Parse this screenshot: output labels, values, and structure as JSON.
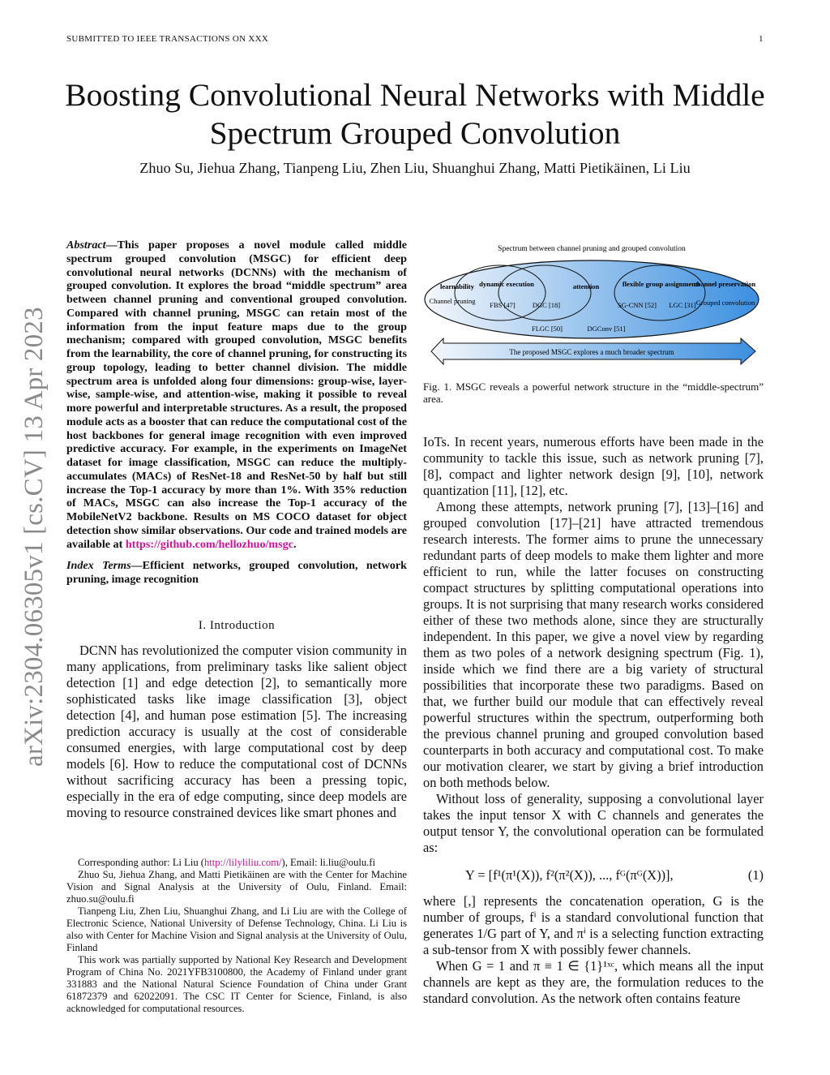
{
  "header": {
    "left": "SUBMITTED TO IEEE TRANSACTIONS ON XXX",
    "page": "1"
  },
  "title": "Boosting Convolutional Neural Networks with Middle Spectrum Grouped Convolution",
  "authors": "Zhuo Su, Jiehua Zhang, Tianpeng Liu, Zhen Liu, Shuanghui Zhang, Matti Pietikäinen, Li Liu",
  "watermark": "arXiv:2304.06305v1  [cs.CV]  13 Apr 2023",
  "abstract": {
    "label": "Abstract",
    "text": "—This paper proposes a novel module called middle spectrum grouped convolution (MSGC) for efficient deep convolutional neural networks (DCNNs) with the mechanism of grouped convolution. It explores the broad “middle spectrum” area between channel pruning and conventional grouped convolution. Compared with channel pruning, MSGC can retain most of the information from the input feature maps due to the group mechanism; compared with grouped convolution, MSGC benefits from the learnability, the core of channel pruning, for constructing its group topology, leading to better channel division. The middle spectrum area is unfolded along four dimensions: group-wise, layer-wise, sample-wise, and attention-wise, making it possible to reveal more powerful and interpretable structures. As a result, the proposed module acts as a booster that can reduce the computational cost of the host backbones for general image recognition with even improved predictive accuracy. For example, in the experiments on ImageNet dataset for image classification, MSGC can reduce the multiply-accumulates (MACs) of ResNet-18 and ResNet-50 by half but still increase the Top-1 accuracy by more than 1%. With 35% reduction of MACs, MSGC can also increase the Top-1 accuracy of the MobileNetV2 backbone. Results on MS COCO dataset for object detection show similar observations. Our code and trained models are available at ",
    "link": "https://github.com/hellozhuo/msgc",
    "end": "."
  },
  "index_terms": {
    "label": "Index Terms",
    "text": "—Efficient networks, grouped convolution, network pruning, image recognition"
  },
  "section1": "I. Introduction",
  "left_paragraph": "DCNN has revolutionized the computer vision community in many applications, from preliminary tasks like salient object detection [1] and edge detection [2], to semantically more sophisticated tasks like image classification [3], object detection [4], and human pose estimation [5]. The increasing prediction accuracy is usually at the cost of considerable consumed energies, with large computational cost by deep models [6]. How to reduce the computational cost of DCNNs without sacrificing accuracy has been a pressing topic, especially in the era of edge computing, since deep models are moving to resource constrained devices like smart phones and",
  "footnotes": [
    {
      "pre": "Corresponding author: Li Liu (",
      "link": "http://lilyliliu.com/",
      "post": "), Email: li.liu@oulu.fi"
    },
    {
      "pre": "Zhuo Su, Jiehua Zhang, and Matti Pietikäinen are with the Center for Machine Vision and Signal Analysis at the University of Oulu, Finland. Email: zhuo.su@oulu.fi"
    },
    {
      "pre": "Tianpeng Liu, Zhen Liu, Shuanghui Zhang, and Li Liu are with the College of Electronic Science, National University of Defense Technology, China. Li Liu is also with Center for Machine Vision and Signal analysis at the University of Oulu, Finland"
    },
    {
      "pre": "This work was partially supported by National Key Research and Development Program of China No. 2021YFB3100800, the Academy of Finland under grant 331883 and the National Natural Science Foundation of China under Grant 61872379 and 62022091. The CSC IT Center for Science, Finland, is also acknowledged for computational resources."
    }
  ],
  "figure": {
    "top_label": "Spectrum between channel pruning and grouped convolution",
    "learnability": "learnability",
    "channel_pruning": "Channel pruning",
    "dynamic": "dynamic execution",
    "fbs": "FBS [47]",
    "dgc": "DGC [18]",
    "attention": "attention",
    "flexible": "flexible group assignments",
    "sgcnn": "SG-CNN [52]",
    "lgc": "LGC [31]",
    "preservation": "channel preservation",
    "grouped": "Grouped convolution",
    "flgc": "FLGC [50]",
    "dgconv": "DGConv [51]",
    "arrow": "The proposed MSGC explores a much broader spectrum",
    "caption": "Fig. 1.  MSGC reveals a powerful network structure in the “middle-spectrum” area.",
    "colors": {
      "light": "#f2f6fb",
      "dark": "#3b8fe0"
    }
  },
  "right_paragraphs": [
    "IoTs. In recent years, numerous efforts have been made in the community to tackle this issue, such as network pruning [7], [8], compact and lighter network design [9], [10], network quantization [11], [12], etc.",
    "Among these attempts, network pruning [7], [13]–[16] and grouped convolution [17]–[21] have attracted tremendous research interests. The former aims to prune the unnecessary redundant parts of deep models to make them lighter and more efficient to run, while the latter focuses on constructing compact structures by splitting computational operations into groups. It is not surprising that many research works considered either of these two methods alone, since they are structurally independent. In this paper, we give a novel view by regarding them as two poles of a network designing spectrum (Fig. 1), inside which we find there are a big variety of structural possibilities that incorporate these two paradigms. Based on that, we further build our module that can effectively reveal powerful structures within the spectrum, outperforming both the previous channel pruning and grouped convolution based counterparts in both accuracy and computational cost. To make our motivation clearer, we start by giving a brief introduction on both methods below.",
    "Without loss of generality, supposing a convolutional layer takes the input tensor X with C channels and generates the output tensor Y, the convolutional operation can be formulated as:"
  ],
  "equation": {
    "text": "Y = [f¹(π¹(X)), f²(π²(X)), ..., fᴳ(πᴳ(X))],",
    "number": "(1)"
  },
  "right_paragraphs_2": [
    "where [,] represents the concatenation operation, G is the number of groups, fⁱ is a standard convolutional function that generates 1/G part of Y, and πⁱ is a selecting function extracting a sub-tensor from X with possibly fewer channels.",
    "When G = 1 and π ≡ 1 ∈ {1}¹ˣᶜ, which means all the input channels are kept as they are, the formulation reduces to the standard convolution. As the network often contains feature"
  ]
}
